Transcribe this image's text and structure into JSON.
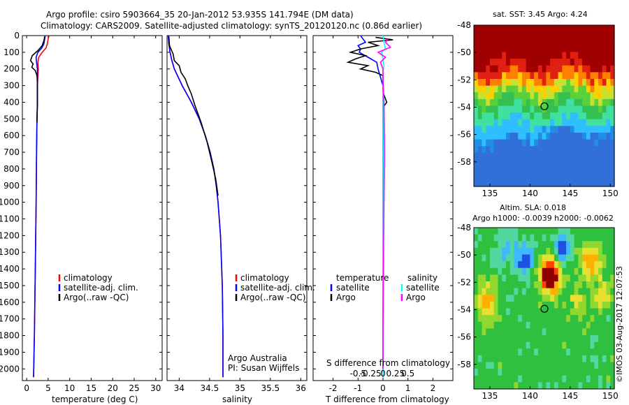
{
  "header": {
    "line1": "Argo profile: csiro 5903664_35 20-Jan-2012 53.935S 141.794E (DM data)",
    "line2": "Climatology: CARS2009. Satellite-adjusted climatology: synTS_20120120.nc (0.86d earlier)"
  },
  "colors": {
    "climatology": "#ff0000",
    "satellite": "#0000ff",
    "argo": "#000000",
    "argo_salinity": "#ff00ff",
    "satellite_salinity": "#00ffff"
  },
  "chart_data": [
    {
      "type": "line",
      "name": "temperature",
      "xlabel": "temperature (deg C)",
      "ylabel": "",
      "xlim": [
        -1,
        31.5
      ],
      "ylim": [
        2070,
        0
      ],
      "xticks": [
        "0",
        "5",
        "10",
        "15",
        "20",
        "25",
        "30"
      ],
      "xtick_values": [
        0,
        5,
        10,
        15,
        20,
        25,
        30
      ],
      "yticks": [
        "0",
        "100",
        "200",
        "300",
        "400",
        "500",
        "600",
        "700",
        "800",
        "900",
        "1000",
        "1100",
        "1200",
        "1300",
        "1400",
        "1500",
        "1600",
        "1700",
        "1800",
        "1900",
        "2000"
      ],
      "ytick_values": [
        0,
        100,
        200,
        300,
        400,
        500,
        600,
        700,
        800,
        900,
        1000,
        1100,
        1200,
        1300,
        1400,
        1500,
        1600,
        1700,
        1800,
        1900,
        2000
      ],
      "legend": [
        "climatology",
        "satellite-adj. clim.",
        "Argo(..raw -QC)"
      ],
      "series": [
        {
          "name": "climatology",
          "color": "#ff0000",
          "depth": [
            0,
            20,
            50,
            75,
            100,
            130,
            160,
            200,
            250,
            300,
            400,
            500,
            700,
            1000,
            1400,
            1800,
            2050
          ],
          "values": [
            5.2,
            5.0,
            4.8,
            4.5,
            3.6,
            2.8,
            2.6,
            2.7,
            2.6,
            2.5,
            2.5,
            2.4,
            2.3,
            2.2,
            2.0,
            1.8,
            1.6
          ]
        },
        {
          "name": "satellite",
          "color": "#0000ff",
          "depth": [
            0,
            20,
            50,
            75,
            100,
            130,
            160,
            200,
            250,
            300,
            400,
            500,
            700,
            1000,
            1400,
            1800,
            2050
          ],
          "values": [
            4.3,
            4.2,
            4.0,
            3.5,
            2.6,
            2.2,
            2.3,
            2.5,
            2.5,
            2.5,
            2.5,
            2.4,
            2.3,
            2.2,
            2.0,
            1.8,
            1.6
          ]
        },
        {
          "name": "Argo",
          "color": "#000000",
          "depth": [
            5,
            30,
            60,
            90,
            120,
            150,
            170,
            190,
            210,
            240,
            280,
            340,
            420,
            520
          ],
          "values": [
            4.2,
            4.0,
            3.6,
            2.6,
            1.3,
            0.9,
            1.5,
            1.2,
            2.0,
            2.4,
            2.5,
            2.5,
            2.5,
            2.4
          ]
        }
      ]
    },
    {
      "type": "line",
      "name": "salinity",
      "xlabel": "salinity",
      "xlim": [
        33.8,
        36.1
      ],
      "ylim": [
        2070,
        0
      ],
      "xticks": [
        "34",
        "34.5",
        "35",
        "35.5",
        "36"
      ],
      "xtick_values": [
        34,
        34.5,
        35,
        35.5,
        36
      ],
      "legend": [
        "climatology",
        "satellite-adj. clim.",
        "Argo(..raw -QC)"
      ],
      "annotation": [
        "Argo Australia",
        "PI: Susan Wijffels"
      ],
      "series": [
        {
          "name": "climatology",
          "color": "#ff0000",
          "depth": [
            0,
            50,
            100,
            150,
            200,
            300,
            400,
            500,
            600,
            700,
            800,
            900,
            1000,
            1200,
            1500,
            1800,
            2050
          ],
          "values": [
            33.82,
            33.83,
            33.85,
            33.88,
            33.92,
            34.05,
            34.2,
            34.33,
            34.43,
            34.51,
            34.57,
            34.61,
            34.64,
            34.68,
            34.71,
            34.72,
            34.72
          ]
        },
        {
          "name": "satellite",
          "color": "#0000ff",
          "depth": [
            0,
            50,
            100,
            150,
            200,
            300,
            400,
            500,
            600,
            700,
            800,
            900,
            1000,
            1200,
            1500,
            1800,
            2050
          ],
          "values": [
            33.82,
            33.83,
            33.85,
            33.88,
            33.92,
            34.05,
            34.2,
            34.33,
            34.43,
            34.51,
            34.57,
            34.61,
            34.64,
            34.68,
            34.71,
            34.72,
            34.72
          ]
        },
        {
          "name": "Argo",
          "color": "#000000",
          "depth": [
            5,
            60,
            110,
            150,
            180,
            220,
            260,
            300,
            350,
            420,
            520,
            640,
            760,
            860,
            960
          ],
          "values": [
            33.83,
            33.84,
            33.9,
            33.92,
            34.0,
            34.03,
            34.1,
            34.14,
            34.2,
            34.26,
            34.36,
            34.46,
            34.54,
            34.6,
            34.64
          ]
        }
      ]
    },
    {
      "type": "line",
      "name": "differences",
      "xlabel": "T difference from climatology",
      "xlabel_top": "S difference from climatology",
      "xlim": [
        -2.8,
        2.8
      ],
      "ylim": [
        2070,
        0
      ],
      "xticks": [
        "-2",
        "-1",
        "0",
        "1",
        "2"
      ],
      "xtick_values": [
        -2,
        -1,
        0,
        1,
        2
      ],
      "xticks_s": [
        "-0.5",
        "-0.25",
        "0",
        "0.25",
        "0.5"
      ],
      "xtick_values_s": [
        -0.5,
        -0.25,
        0,
        0.25,
        0.5
      ],
      "legend": {
        "temperature_title": "temperature",
        "salinity_title": "salinity",
        "satellite": "satellite",
        "argo": "Argo"
      },
      "series": [
        {
          "name": "T satellite",
          "color": "#0000ff",
          "depth": [
            0,
            20,
            40,
            60,
            80,
            100,
            130,
            160,
            200,
            300,
            500,
            1000,
            2050
          ],
          "values": [
            -0.9,
            -0.8,
            -0.7,
            -1.0,
            -0.9,
            -0.95,
            -0.6,
            -0.25,
            -0.2,
            0,
            0,
            0,
            0
          ]
        },
        {
          "name": "T Argo",
          "color": "#000000",
          "depth": [
            10,
            25,
            40,
            60,
            80,
            100,
            120,
            140,
            160,
            180,
            200,
            220,
            240,
            280,
            340,
            380,
            400,
            420,
            450
          ],
          "values": [
            -0.3,
            0.4,
            -0.6,
            -0.2,
            -0.9,
            -1.3,
            -0.7,
            -1.1,
            -1.4,
            -0.6,
            -0.9,
            -0.3,
            0,
            0,
            0,
            0.1,
            0.15,
            0.05,
            0
          ]
        },
        {
          "name": "S satellite",
          "color": "#00ffff",
          "depth": [
            0,
            40,
            80,
            100,
            140,
            180,
            220,
            300,
            500,
            1000,
            2050
          ],
          "values": [
            0,
            0.02,
            0.05,
            -0.03,
            0,
            0.02,
            0,
            0,
            0,
            0,
            0
          ]
        },
        {
          "name": "S Argo",
          "color": "#ff00ff",
          "depth": [
            20,
            40,
            70,
            100,
            130,
            160,
            200,
            260,
            400,
            700,
            1000,
            1400,
            1800,
            2000
          ],
          "values": [
            0.1,
            0.05,
            0.15,
            -0.1,
            0.05,
            -0.05,
            0,
            0,
            0.02,
            0.03,
            0.02,
            0.01,
            0,
            0
          ]
        }
      ]
    },
    {
      "type": "heatmap",
      "name": "sst_map",
      "title": "sat. SST: 3.45 Argo: 4.24",
      "xlim": [
        133,
        150.5
      ],
      "ylim": [
        -59.8,
        -48
      ],
      "xticks": [
        "135",
        "140",
        "145",
        "150"
      ],
      "xtick_values": [
        135,
        140,
        145,
        150
      ],
      "yticks": [
        "-48",
        "-50",
        "-52",
        "-54",
        "-56",
        "-58"
      ],
      "ytick_values": [
        -48,
        -50,
        -52,
        -54,
        -56,
        -58
      ],
      "marker": [
        141.794,
        -53.935
      ]
    },
    {
      "type": "heatmap",
      "name": "sla_map",
      "title": "Altim. SLA: 0.018",
      "subtitle": "Argo h1000: -0.0039 h2000: -0.0062",
      "xlim": [
        133,
        150.5
      ],
      "ylim": [
        -59.8,
        -48
      ],
      "xticks": [
        "135",
        "140",
        "145",
        "150"
      ],
      "xtick_values": [
        135,
        140,
        145,
        150
      ],
      "yticks": [
        "-48",
        "-50",
        "-52",
        "-54",
        "-56",
        "-58"
      ],
      "ytick_values": [
        -48,
        -50,
        -52,
        -54,
        -56,
        -58
      ],
      "marker": [
        141.794,
        -53.935
      ]
    }
  ],
  "footer": {
    "credit": "©IMOS 03-Aug-2017 12:07:53"
  }
}
